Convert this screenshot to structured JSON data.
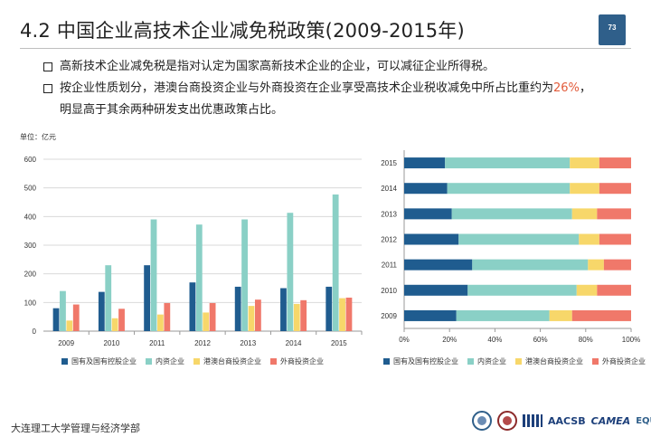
{
  "header": {
    "title": "4.2  中国企业高技术企业减免税政策(2009-2015年)",
    "page_number": "73"
  },
  "bullets": [
    {
      "text": "高新技术企业减免税是指对认定为国家高新技术企业的企业，可以减征企业所得税。"
    },
    {
      "text_before": "按企业性质划分，港澳台商投资企业与外商投资在企业享受高技术企业税收减免中所占比重约为",
      "highlight": "26%",
      "text_after": "，",
      "continuation": "明显高于其余两种研发支出优惠政策占比。"
    }
  ],
  "footer": {
    "institution": "大连理工大学管理与经济学部"
  },
  "logos": {
    "aacsb": "AACSB",
    "camea": "CAMEA",
    "equis": "EQUIS"
  },
  "colors": {
    "state_owned": "#1f5c8f",
    "domestic": "#8ad0c6",
    "hk_macau_tw": "#f7d76a",
    "foreign": "#f0786a"
  },
  "chart_data": [
    {
      "type": "bar",
      "unit_label": "单位：亿元",
      "categories": [
        "2009",
        "2010",
        "2011",
        "2012",
        "2013",
        "2014",
        "2015"
      ],
      "ylim": [
        0,
        600
      ],
      "yticks": [
        0,
        100,
        200,
        300,
        400,
        500,
        600
      ],
      "grid": true,
      "legend": "bottom",
      "series": [
        {
          "name": "国有及国有控股企业",
          "values": [
            80,
            137,
            230,
            170,
            155,
            150,
            155
          ]
        },
        {
          "name": "内资企业",
          "values": [
            140,
            230,
            390,
            372,
            390,
            413,
            477
          ]
        },
        {
          "name": "港澳台商投资企业",
          "values": [
            37,
            45,
            58,
            65,
            88,
            95,
            115
          ]
        },
        {
          "name": "外商投资企业",
          "values": [
            93,
            78,
            98,
            98,
            110,
            108,
            117
          ]
        }
      ]
    },
    {
      "type": "bar",
      "orientation": "horizontal",
      "stacked": "percent",
      "categories": [
        "2015",
        "2014",
        "2013",
        "2012",
        "2011",
        "2010",
        "2009"
      ],
      "xlim": [
        0,
        100
      ],
      "xticks": [
        "0%",
        "20%",
        "40%",
        "60%",
        "80%",
        "100%"
      ],
      "grid": false,
      "legend": "bottom",
      "series": [
        {
          "name": "国有及国有控股企业",
          "values": [
            18,
            19,
            21,
            24,
            30,
            28,
            23
          ]
        },
        {
          "name": "内资企业",
          "values": [
            55,
            54,
            53,
            53,
            51,
            48,
            41
          ]
        },
        {
          "name": "港澳台商投资企业",
          "values": [
            13,
            13,
            11,
            9,
            7,
            9,
            10
          ]
        },
        {
          "name": "外商投资企业",
          "values": [
            14,
            14,
            15,
            14,
            12,
            15,
            26
          ]
        }
      ]
    }
  ]
}
